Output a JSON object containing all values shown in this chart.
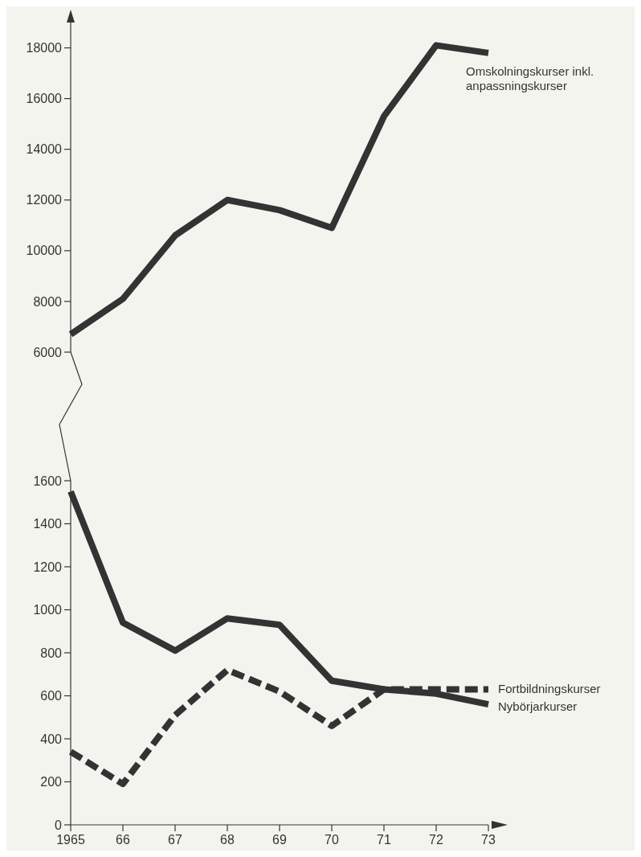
{
  "chart_data": [
    {
      "type": "line",
      "x": [
        1965,
        1966,
        1967,
        1968,
        1969,
        1970,
        1971,
        1972,
        1973
      ],
      "xlim": [
        1965,
        1973
      ],
      "ylim": [
        6000,
        19000
      ],
      "yticks": [
        6000,
        8000,
        10000,
        12000,
        14000,
        16000,
        18000
      ],
      "tick_labels": "y",
      "grid": false,
      "marker": "none",
      "series": [
        {
          "name": "Omskolningskurser inkl. anpassningskurser",
          "color": "#333333",
          "line_style": "solid",
          "values": [
            6700,
            8100,
            10600,
            12000,
            11600,
            10900,
            15300,
            18100,
            17800
          ]
        }
      ]
    },
    {
      "type": "line",
      "x": [
        1965,
        1966,
        1967,
        1968,
        1969,
        1970,
        1971,
        1972,
        1973
      ],
      "xlim": [
        1965,
        1973
      ],
      "ylim": [
        0,
        1600
      ],
      "yticks": [
        0,
        200,
        400,
        600,
        800,
        1000,
        1200,
        1400,
        1600
      ],
      "xticks": [
        {
          "value": 1965,
          "label": "1965"
        },
        {
          "value": 1966,
          "label": "66"
        },
        {
          "value": 1967,
          "label": "67"
        },
        {
          "value": 1968,
          "label": "68"
        },
        {
          "value": 1969,
          "label": "69"
        },
        {
          "value": 1970,
          "label": "70"
        },
        {
          "value": 1971,
          "label": "71"
        },
        {
          "value": 1972,
          "label": "72"
        },
        {
          "value": 1973,
          "label": "73"
        }
      ],
      "grid": false,
      "marker": "none",
      "series": [
        {
          "name": "Fortbildningskurser",
          "color": "#333333",
          "line_style": "dashed",
          "values": [
            340,
            190,
            510,
            720,
            620,
            460,
            630,
            630,
            630
          ]
        },
        {
          "name": "Nybörjarkurser",
          "color": "#333333",
          "line_style": "solid",
          "values": [
            1550,
            940,
            810,
            960,
            930,
            670,
            630,
            610,
            560
          ]
        }
      ]
    }
  ]
}
